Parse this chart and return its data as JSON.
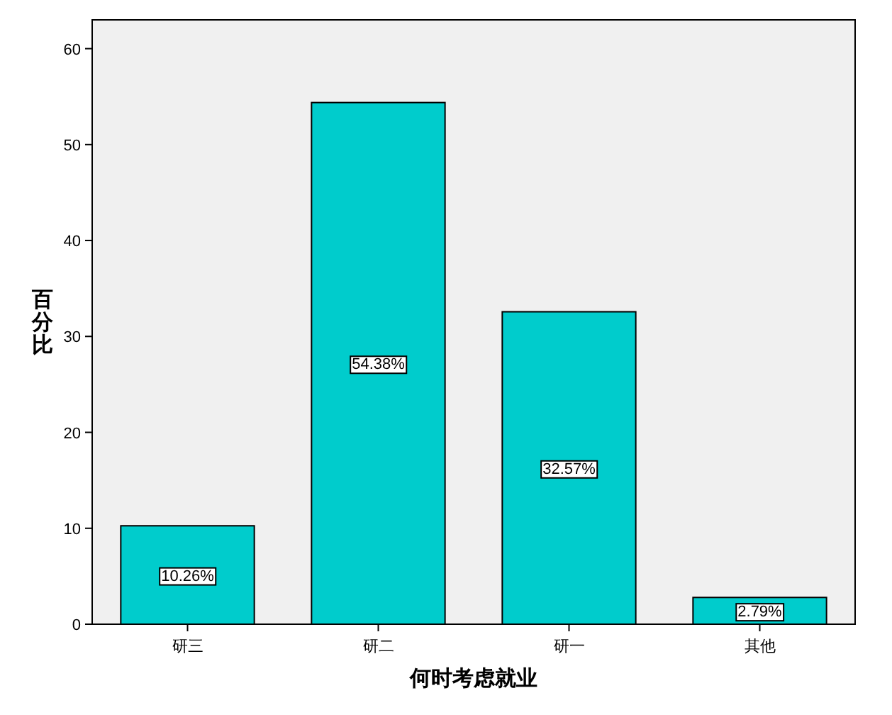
{
  "chart_data": {
    "type": "bar",
    "xlabel": "何时考虑就业",
    "ylabel": "百分比",
    "categories": [
      "研三",
      "研二",
      "研一",
      "其他"
    ],
    "values": [
      10.26,
      54.38,
      32.57,
      2.79
    ],
    "value_labels": [
      "10.26%",
      "54.38%",
      "32.57%",
      "2.79%"
    ],
    "color": "#00cccc",
    "ylim": [
      0,
      63
    ],
    "yticks": [
      0,
      10,
      20,
      30,
      40,
      50,
      60
    ],
    "grid": false
  }
}
